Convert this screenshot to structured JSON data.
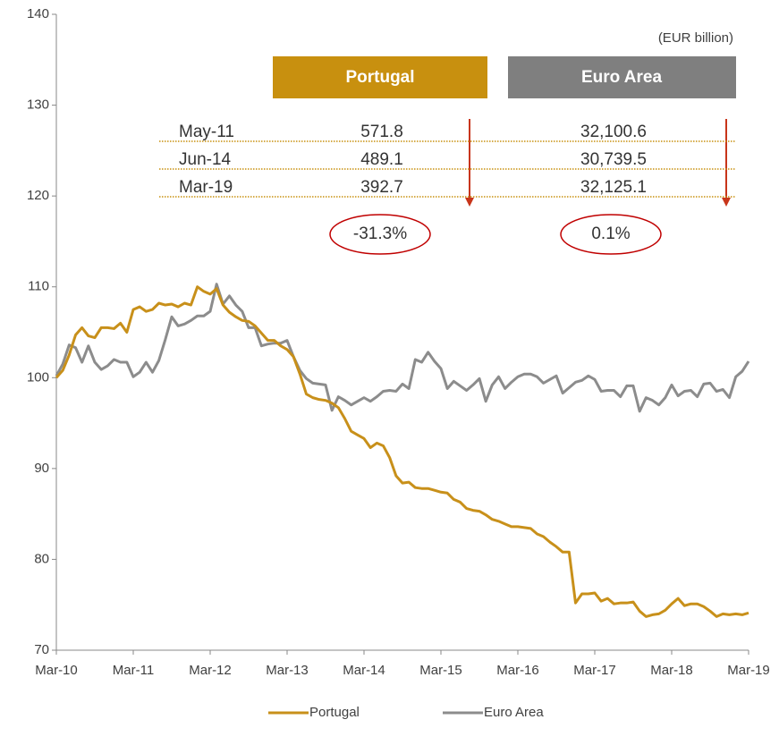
{
  "chart_data": {
    "type": "line",
    "categories": [
      "Mar-10",
      null,
      null,
      null,
      null,
      null,
      null,
      null,
      null,
      null,
      null,
      null,
      "Mar-11",
      null,
      null,
      null,
      null,
      null,
      null,
      null,
      null,
      null,
      null,
      null,
      "Mar-12",
      null,
      null,
      null,
      null,
      null,
      null,
      null,
      null,
      null,
      null,
      null,
      "Mar-13",
      null,
      null,
      null,
      null,
      null,
      null,
      null,
      null,
      null,
      null,
      null,
      "Mar-14",
      null,
      null,
      null,
      null,
      null,
      null,
      null,
      null,
      null,
      null,
      null,
      "Mar-15",
      null,
      null,
      null,
      null,
      null,
      null,
      null,
      null,
      null,
      null,
      null,
      "Mar-16",
      null,
      null,
      null,
      null,
      null,
      null,
      null,
      null,
      null,
      null,
      null,
      "Mar-17",
      null,
      null,
      null,
      null,
      null,
      null,
      null,
      null,
      null,
      null,
      null,
      "Mar-18",
      null,
      null,
      null,
      null,
      null,
      null,
      null,
      null,
      null,
      null,
      null,
      "Mar-19"
    ],
    "series": [
      {
        "name": "Portugal",
        "color": "#c8901a",
        "values": [
          100,
          100.8,
          102.5,
          104.7,
          105.5,
          104.6,
          104.4,
          105.5,
          105.5,
          105.4,
          106,
          105,
          107.5,
          107.8,
          107.3,
          107.5,
          108.2,
          108,
          108.1,
          107.8,
          108.2,
          108,
          110,
          109.5,
          109.2,
          109.8,
          108,
          107.2,
          106.7,
          106.3,
          106.2,
          105.7,
          104.9,
          104.1,
          104.1,
          103.5,
          103.1,
          102.3,
          100.4,
          98.2,
          97.8,
          97.6,
          97.5,
          97.2,
          96.7,
          95.5,
          94.1,
          93.7,
          93.3,
          92.3,
          92.8,
          92.5,
          91.2,
          89.2,
          88.4,
          88.5,
          87.9,
          87.8,
          87.8,
          87.6,
          87.4,
          87.3,
          86.6,
          86.3,
          85.6,
          85.4,
          85.3,
          84.9,
          84.4,
          84.2,
          83.9,
          83.6,
          83.6,
          83.5,
          83.4,
          82.8,
          82.5,
          81.9,
          81.4,
          80.8,
          80.8,
          75.2,
          76.2,
          76.2,
          76.3,
          75.4,
          75.7,
          75.1,
          75.2,
          75.2,
          75.3,
          74.3,
          73.7,
          73.9,
          74.0,
          74.4,
          75.1,
          75.7,
          74.9,
          75.1,
          75.1,
          74.8,
          74.3,
          73.7,
          74.0,
          73.9,
          74.0,
          73.9,
          74.1
        ]
      },
      {
        "name": "Euro Area",
        "color": "#8c8c8c",
        "values": [
          100.2,
          101.5,
          103.6,
          103.3,
          101.7,
          103.5,
          101.7,
          100.9,
          101.3,
          102.0,
          101.7,
          101.7,
          100.1,
          100.6,
          101.7,
          100.6,
          101.9,
          104.2,
          106.7,
          105.7,
          105.9,
          106.3,
          106.8,
          106.8,
          107.3,
          110.3,
          108.1,
          109.0,
          108.0,
          107.3,
          105.5,
          105.5,
          103.5,
          103.7,
          103.8,
          103.8,
          104.1,
          102.3,
          100.8,
          99.9,
          99.4,
          99.3,
          99.2,
          96.4,
          97.9,
          97.5,
          97.0,
          97.4,
          97.8,
          97.4,
          97.9,
          98.5,
          98.6,
          98.5,
          99.3,
          98.8,
          102.0,
          101.7,
          102.8,
          101.8,
          101.0,
          98.8,
          99.6,
          99.1,
          98.6,
          99.2,
          99.9,
          97.4,
          99.2,
          100.1,
          98.8,
          99.5,
          100.1,
          100.4,
          100.4,
          100.1,
          99.4,
          99.8,
          100.2,
          98.3,
          98.9,
          99.5,
          99.7,
          100.2,
          99.8,
          98.5,
          98.6,
          98.6,
          97.9,
          99.1,
          99.1,
          96.3,
          97.8,
          97.5,
          97.0,
          97.8,
          99.2,
          98.0,
          98.5,
          98.6,
          97.9,
          99.3,
          99.4,
          98.5,
          98.7,
          97.8,
          100.1,
          100.7,
          101.8
        ]
      }
    ],
    "ylim": [
      70,
      140
    ],
    "yticks": [
      70,
      80,
      90,
      100,
      110,
      120,
      130,
      140
    ],
    "legend": "bottom",
    "table": {
      "unit": "(EUR billion)",
      "columns": [
        "Portugal",
        "Euro Area"
      ],
      "rows": [
        [
          "May-11",
          "571.8",
          "32,100.6"
        ],
        [
          "Jun-14",
          "489.1",
          "30,739.5"
        ],
        [
          "Mar-19",
          "392.7",
          "32,125.1"
        ]
      ],
      "changes": [
        "-31.3%",
        "0.1%"
      ]
    }
  }
}
